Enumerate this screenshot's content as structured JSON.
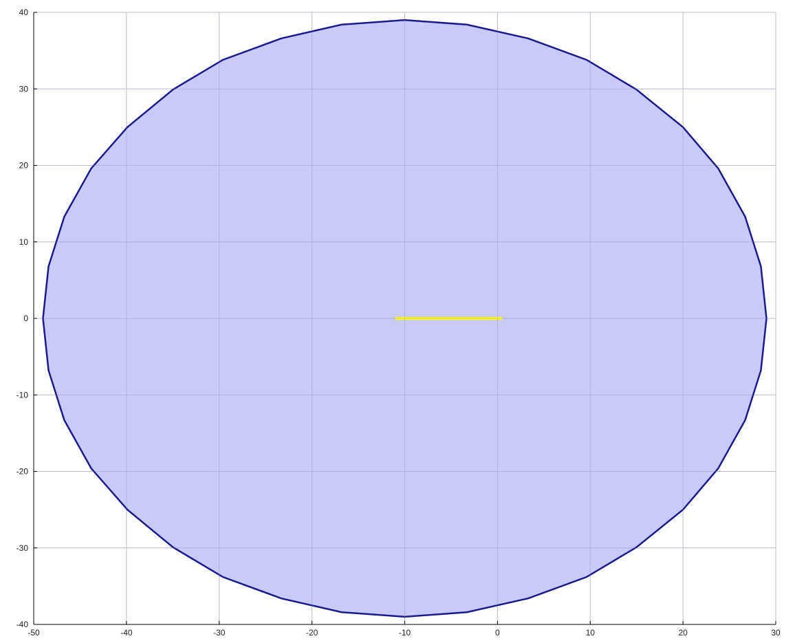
{
  "chart_data": {
    "type": "area",
    "title": "",
    "xlabel": "",
    "ylabel": "",
    "xlim": [
      -50,
      30
    ],
    "ylim": [
      -40,
      40
    ],
    "grid": true,
    "x_ticks": [
      -50,
      -40,
      -30,
      -20,
      -10,
      0,
      10,
      20,
      30
    ],
    "y_ticks": [
      40,
      30,
      20,
      10,
      0,
      -10,
      -20,
      -30,
      -40
    ],
    "x_tick_labels": [
      "-50",
      "-40",
      "-30",
      "-20",
      "-10",
      "0",
      "10",
      "20",
      "30"
    ],
    "y_tick_labels": [
      "40",
      "30",
      "20",
      "10",
      "0",
      "-10",
      "-20",
      "-30",
      "-40"
    ],
    "series": [
      {
        "kind": "polygon",
        "fill": "#c8c8fa",
        "stroke": "#1a1a8c",
        "points": [
          [
            29.0,
            0.0
          ],
          [
            28.4,
            6.8
          ],
          [
            26.7,
            13.3
          ],
          [
            23.8,
            19.6
          ],
          [
            20.0,
            25.0
          ],
          [
            15.0,
            29.9
          ],
          [
            9.6,
            33.8
          ],
          [
            3.3,
            36.6
          ],
          [
            -3.3,
            38.4
          ],
          [
            -10.0,
            39.0
          ],
          [
            -16.8,
            38.4
          ],
          [
            -23.3,
            36.6
          ],
          [
            -29.6,
            33.8
          ],
          [
            -35.0,
            29.9
          ],
          [
            -39.9,
            25.0
          ],
          [
            -43.8,
            19.6
          ],
          [
            -46.7,
            13.3
          ],
          [
            -48.4,
            6.8
          ],
          [
            -49.0,
            0.0
          ],
          [
            -48.4,
            -6.8
          ],
          [
            -46.7,
            -13.3
          ],
          [
            -43.8,
            -19.6
          ],
          [
            -39.9,
            -25.0
          ],
          [
            -35.0,
            -29.9
          ],
          [
            -29.6,
            -33.8
          ],
          [
            -23.3,
            -36.6
          ],
          [
            -16.8,
            -38.4
          ],
          [
            -10.0,
            -39.0
          ],
          [
            -3.3,
            -38.4
          ],
          [
            3.3,
            -36.6
          ],
          [
            9.6,
            -33.8
          ],
          [
            15.0,
            -29.9
          ],
          [
            20.0,
            -25.0
          ],
          [
            23.8,
            -19.6
          ],
          [
            26.7,
            -13.3
          ],
          [
            28.4,
            -6.8
          ]
        ]
      },
      {
        "kind": "line",
        "color": "#ffff00",
        "points": [
          [
            -11.0,
            0.0
          ],
          [
            0.5,
            0.0
          ]
        ]
      }
    ]
  }
}
